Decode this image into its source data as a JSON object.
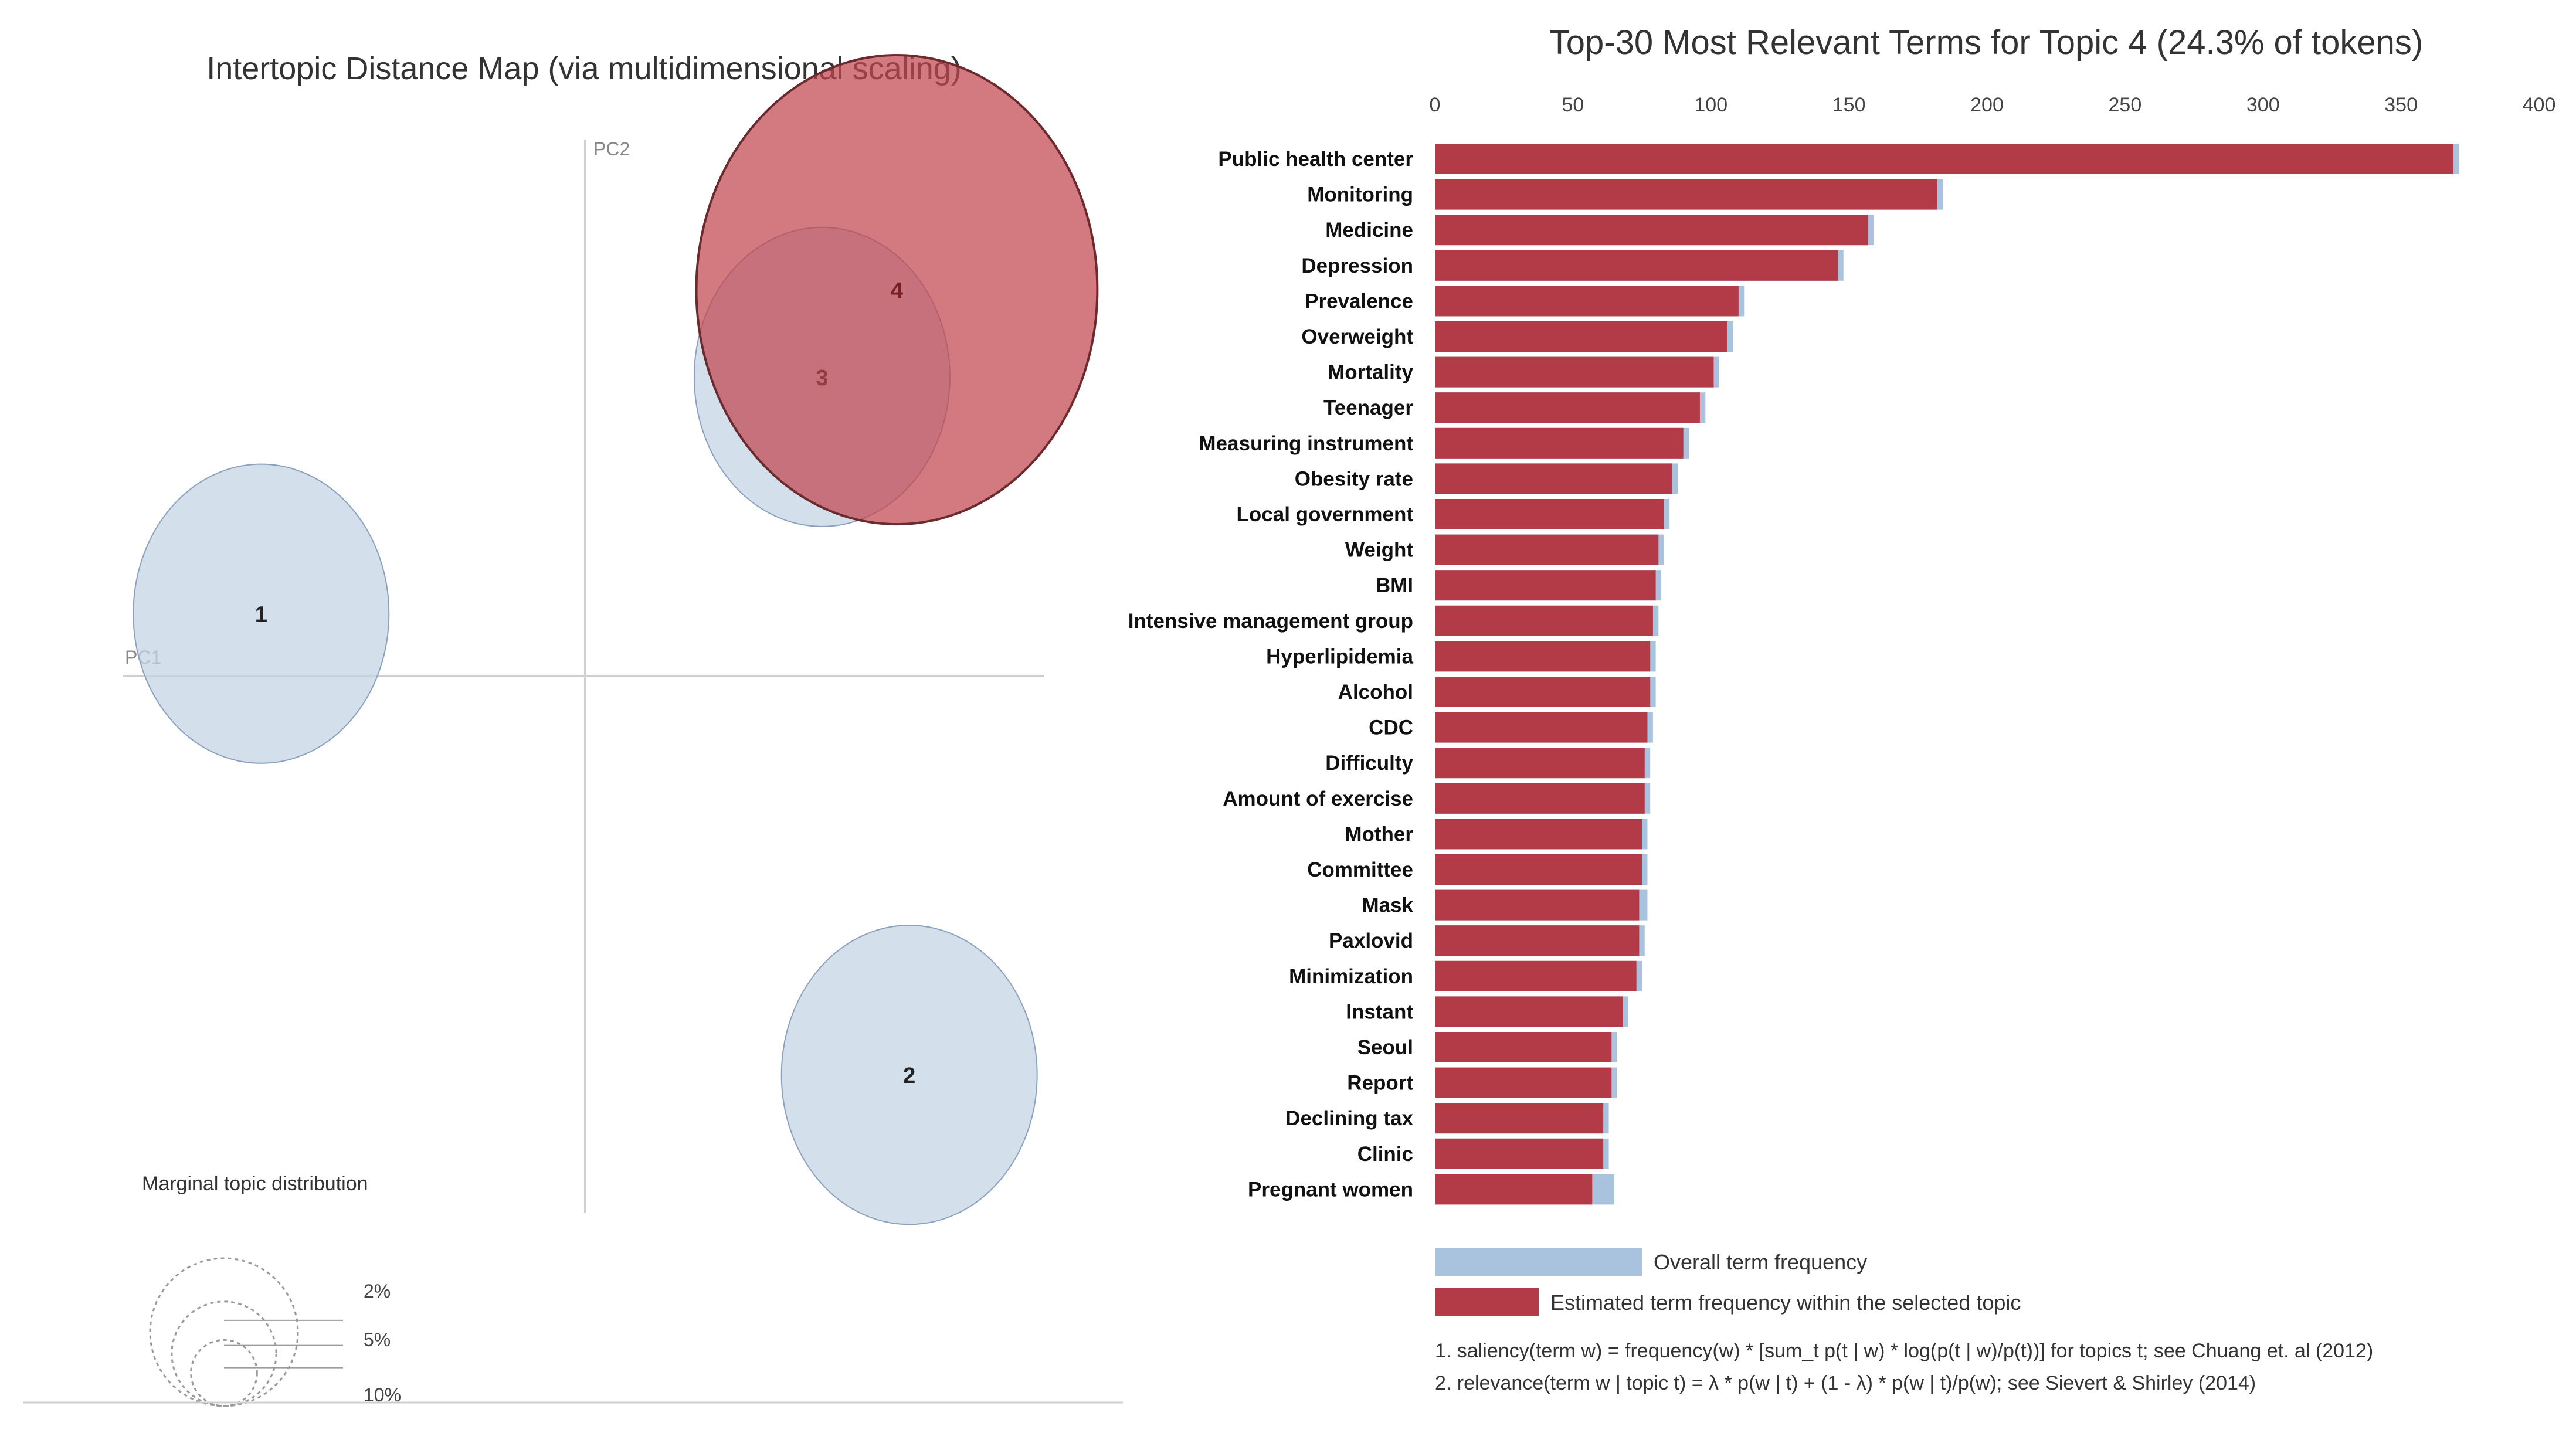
{
  "colors": {
    "topic_fill": "#c6d4e6",
    "topic_stroke": "#8aa0bc",
    "selected_fill": "#c0474f",
    "selected_stroke": "#6b2a2e",
    "bar_overall": "#a9c3de",
    "bar_topic": "#b23b47"
  },
  "chart_data": [
    {
      "type": "scatter",
      "title": "Intertopic Distance Map (via multidimensional scaling)",
      "xlabel": "PC1",
      "ylabel": "PC2",
      "xlim": [
        -0.35,
        0.35
      ],
      "ylim": [
        -0.35,
        0.35
      ],
      "points": [
        {
          "label": "1",
          "x": -0.26,
          "y": 0.05,
          "share": 8.0,
          "selected": false
        },
        {
          "label": "2",
          "x": 0.26,
          "y": -0.32,
          "share": 8.0,
          "selected": false
        },
        {
          "label": "3",
          "x": 0.19,
          "y": 0.24,
          "share": 8.0,
          "selected": false
        },
        {
          "label": "4",
          "x": 0.25,
          "y": 0.31,
          "share": 24.3,
          "selected": true
        }
      ],
      "legend_title": "Marginal topic distribution",
      "legend_levels": [
        {
          "label": "2%",
          "value": 2
        },
        {
          "label": "5%",
          "value": 5
        },
        {
          "label": "10%",
          "value": 10
        }
      ]
    },
    {
      "type": "bar",
      "orientation": "horizontal",
      "title": "Top-30 Most Relevant Terms for Topic 4 (24.3% of tokens)",
      "xlim": [
        0,
        400
      ],
      "xticks": [
        "0",
        "50",
        "100",
        "150",
        "200",
        "250",
        "300",
        "350",
        "400"
      ],
      "categories": [
        "Public health center",
        "Monitoring",
        "Medicine",
        "Depression",
        "Prevalence",
        "Overweight",
        "Mortality",
        "Teenager",
        "Measuring instrument",
        "Obesity rate",
        "Local government",
        "Weight",
        "BMI",
        "Intensive management group",
        "Hyperlipidemia",
        "Alcohol",
        "CDC",
        "Difficulty",
        "Amount of exercise",
        "Mother",
        "Committee",
        "Mask",
        "Paxlovid",
        "Minimization",
        "Instant",
        "Seoul",
        "Report",
        "Declining tax",
        "Clinic",
        "Pregnant women"
      ],
      "series": [
        {
          "name": "Overall term frequency",
          "values": [
            371,
            184,
            159,
            148,
            112,
            108,
            103,
            98,
            92,
            88,
            85,
            83,
            82,
            81,
            80,
            80,
            79,
            78,
            78,
            77,
            77,
            77,
            76,
            75,
            70,
            66,
            66,
            63,
            63,
            65
          ]
        },
        {
          "name": "Estimated term frequency within the selected topic",
          "values": [
            369,
            182,
            157,
            146,
            110,
            106,
            101,
            96,
            90,
            86,
            83,
            81,
            80,
            79,
            78,
            78,
            77,
            76,
            76,
            75,
            75,
            74,
            74,
            73,
            68,
            64,
            64,
            61,
            61,
            57
          ]
        }
      ],
      "footnotes": [
        "1. saliency(term w) = frequency(w) * [sum_t p(t | w) * log(p(t | w)/p(t))] for topics t; see Chuang et. al (2012)",
        "2. relevance(term w | topic t) = λ * p(w | t) + (1 - λ) * p(w | t)/p(w); see Sievert & Shirley (2014)"
      ]
    }
  ]
}
